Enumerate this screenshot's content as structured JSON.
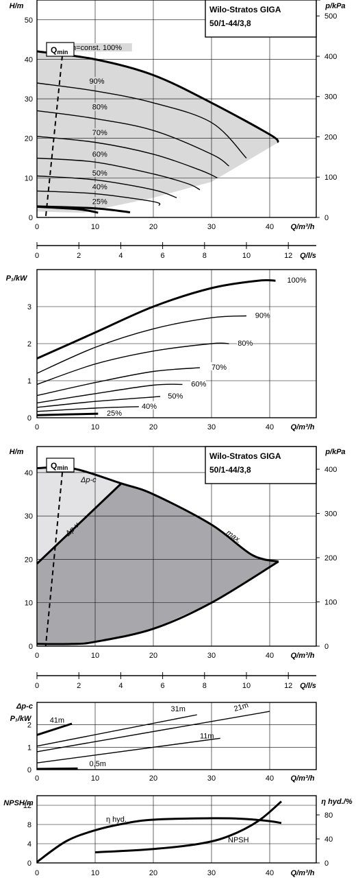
{
  "chart_data": [
    {
      "type": "line",
      "id": "head",
      "title": "Wilo-Stratos GIGA",
      "subtitle": "50/1-44/3,8",
      "xlabel": "Q/m³/h",
      "ylabel": "H/m",
      "y2label": "p/kPa",
      "xlim": [
        0,
        48
      ],
      "ylim": [
        0,
        55
      ],
      "xticks": [
        "0",
        "10",
        "20",
        "30",
        "40"
      ],
      "yticks": [
        "0",
        "10",
        "20",
        "30",
        "40",
        "50"
      ],
      "y2ticks": [
        "0",
        "100",
        "200",
        "300",
        "400",
        "500"
      ],
      "qmin_label": "Q",
      "qmin_sub": "min",
      "series": [
        {
          "name": "n=const. 100%",
          "x": [
            0,
            10,
            20,
            30,
            40,
            41.5
          ],
          "y": [
            42,
            40,
            36,
            29,
            21,
            19
          ]
        },
        {
          "name": "90%",
          "x": [
            0,
            10,
            20,
            30,
            36
          ],
          "y": [
            34,
            32,
            29,
            24,
            15
          ]
        },
        {
          "name": "80%",
          "x": [
            0,
            10,
            20,
            30,
            33
          ],
          "y": [
            27,
            25,
            22,
            16,
            13
          ]
        },
        {
          "name": "70%",
          "x": [
            0,
            10,
            20,
            28,
            31
          ],
          "y": [
            20.5,
            19,
            16,
            12,
            10
          ]
        },
        {
          "name": "60%",
          "x": [
            0,
            10,
            20,
            26,
            28
          ],
          "y": [
            15,
            14,
            11,
            8.5,
            7
          ]
        },
        {
          "name": "50%",
          "x": [
            0,
            10,
            20,
            24
          ],
          "y": [
            10.5,
            9.5,
            7,
            5
          ]
        },
        {
          "name": "40%",
          "x": [
            0,
            10,
            20,
            21
          ],
          "y": [
            6.7,
            6,
            4,
            3
          ]
        },
        {
          "name": "25%",
          "x": [
            0,
            10,
            16
          ],
          "y": [
            2.8,
            2.3,
            1.3
          ]
        },
        {
          "name": "",
          "x": [
            0,
            7,
            10.5
          ],
          "y": [
            2.7,
            2.1,
            1.2
          ]
        }
      ],
      "envelope_x": [
        0,
        10,
        20,
        30,
        40,
        41.5,
        30,
        20,
        12,
        8,
        0
      ],
      "envelope_y": [
        42,
        40,
        36,
        29,
        21,
        19,
        9,
        5,
        2.5,
        1.2,
        1.5
      ],
      "qmin_x": [
        4.5,
        1.5
      ],
      "qmin_y": [
        43,
        0
      ]
    },
    {
      "type": "axis",
      "id": "flow_ls",
      "xlabel": "Q/l/s",
      "xticks": [
        "0",
        "2",
        "4",
        "6",
        "8",
        "10",
        "12"
      ]
    },
    {
      "type": "line",
      "id": "power",
      "xlabel": "Q/m³/h",
      "ylabel": "P₁/kW",
      "xlim": [
        0,
        48
      ],
      "ylim": [
        0,
        4
      ],
      "xticks": [
        "0",
        "10",
        "20",
        "30",
        "40"
      ],
      "yticks": [
        "0",
        "1",
        "2",
        "3"
      ],
      "series": [
        {
          "name": "100%",
          "x": [
            0,
            10,
            20,
            30,
            38,
            41
          ],
          "y": [
            1.6,
            2.3,
            3.0,
            3.5,
            3.7,
            3.7
          ]
        },
        {
          "name": "90%",
          "x": [
            0,
            10,
            20,
            30,
            36
          ],
          "y": [
            1.2,
            1.9,
            2.4,
            2.7,
            2.75
          ]
        },
        {
          "name": "80%",
          "x": [
            0,
            10,
            20,
            30,
            33
          ],
          "y": [
            0.9,
            1.45,
            1.8,
            2.0,
            2.0
          ]
        },
        {
          "name": "70%",
          "x": [
            0,
            10,
            20,
            28
          ],
          "y": [
            0.6,
            0.95,
            1.25,
            1.35
          ]
        },
        {
          "name": "60%",
          "x": [
            0,
            10,
            20,
            25
          ],
          "y": [
            0.4,
            0.65,
            0.88,
            0.9
          ]
        },
        {
          "name": "50%",
          "x": [
            0,
            10,
            20,
            21
          ],
          "y": [
            0.28,
            0.44,
            0.56,
            0.57
          ]
        },
        {
          "name": "40%",
          "x": [
            0,
            10,
            17.5
          ],
          "y": [
            0.17,
            0.26,
            0.3
          ]
        },
        {
          "name": "25%",
          "x": [
            0,
            10.5
          ],
          "y": [
            0.07,
            0.11
          ]
        }
      ]
    },
    {
      "type": "area",
      "id": "control",
      "title": "Wilo-Stratos GIGA",
      "subtitle": "50/1-44/3,8",
      "xlabel": "Q/m³/h",
      "ylabel": "H/m",
      "y2label": "p/kPa",
      "xlim": [
        0,
        48
      ],
      "ylim": [
        0,
        46
      ],
      "xticks": [
        "0",
        "10",
        "20",
        "30",
        "40"
      ],
      "yticks": [
        "0",
        "10",
        "20",
        "30",
        "40"
      ],
      "y2ticks": [
        "0",
        "100",
        "200",
        "300",
        "400"
      ],
      "qmin_label": "Q",
      "qmin_sub": "min",
      "labels": {
        "dpc": "Δp-c",
        "dpv": "Δp-v",
        "max": "max."
      },
      "max_x": [
        0,
        6,
        14.5,
        20,
        30,
        37,
        41.5
      ],
      "max_y": [
        41,
        41,
        37.5,
        35,
        28,
        21,
        19.5
      ],
      "lower_x": [
        41.5,
        30,
        20,
        10,
        6,
        0
      ],
      "lower_y": [
        19.5,
        10,
        4,
        1,
        0.5,
        0.5
      ],
      "dpv_x": [
        0,
        14.5
      ],
      "dpv_y": [
        19,
        37.5
      ],
      "qmin_x": [
        4.5,
        1.5
      ],
      "qmin_y": [
        42,
        0
      ]
    },
    {
      "type": "axis",
      "id": "flow_ls2",
      "xlabel": "Q/l/s",
      "xticks": [
        "0",
        "2",
        "4",
        "6",
        "8",
        "10",
        "12"
      ]
    },
    {
      "type": "line",
      "id": "power2",
      "xlabel": "Q/m³/h",
      "ylabel": "P₁/kW",
      "ylabel2": "Δp-c",
      "xlim": [
        0,
        48
      ],
      "ylim": [
        0,
        3
      ],
      "xticks": [
        "0",
        "10",
        "20",
        "30",
        "40"
      ],
      "yticks": [
        "0",
        "1",
        "2"
      ],
      "series": [
        {
          "name": "41m",
          "x": [
            0,
            6
          ],
          "y": [
            1.55,
            2.05
          ]
        },
        {
          "name": "31m",
          "x": [
            0,
            27.5
          ],
          "y": [
            1.05,
            2.45
          ]
        },
        {
          "name": "21m",
          "x": [
            0,
            40
          ],
          "y": [
            0.8,
            2.6
          ]
        },
        {
          "name": "11m",
          "x": [
            0,
            31.5
          ],
          "y": [
            0.3,
            1.4
          ]
        },
        {
          "name": "0,5m",
          "x": [
            0,
            7
          ],
          "y": [
            0.03,
            0.05
          ]
        }
      ]
    },
    {
      "type": "line",
      "id": "npsh",
      "xlabel": "Q/m³/h",
      "ylabel": "NPSH/m",
      "y2label": "η hyd./%",
      "xlim": [
        0,
        48
      ],
      "ylim": [
        0,
        14
      ],
      "xticks": [
        "0",
        "10",
        "20",
        "30",
        "40"
      ],
      "yticks": [
        "0",
        "4",
        "8",
        "12"
      ],
      "y2ticks": [
        "0",
        "40",
        "80"
      ],
      "series": [
        {
          "name": "η hyd.",
          "x": [
            0,
            5,
            10,
            15,
            20,
            30,
            35,
            40,
            42
          ],
          "y": [
            0.2,
            4.5,
            6.8,
            8.2,
            9.0,
            9.3,
            9.2,
            8.7,
            8.3
          ]
        },
        {
          "name": "NPSH",
          "x": [
            10,
            20,
            28,
            33,
            38,
            42
          ],
          "y": [
            2.2,
            2.9,
            4.0,
            5.6,
            8.7,
            12.8
          ]
        }
      ]
    }
  ]
}
